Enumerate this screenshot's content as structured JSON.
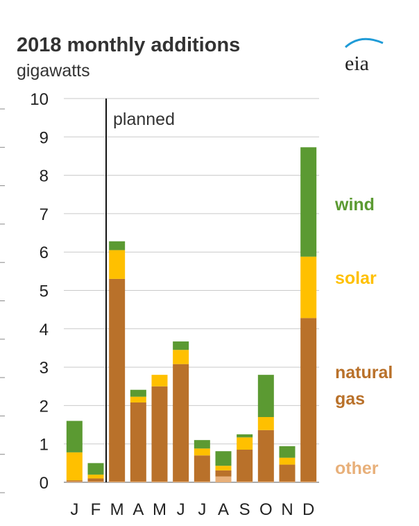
{
  "chart_data": {
    "type": "bar",
    "stacked": true,
    "title": "2018 monthly additions",
    "subtitle": "gigawatts",
    "categories": [
      "J",
      "F",
      "M",
      "A",
      "M",
      "J",
      "J",
      "A",
      "S",
      "O",
      "N",
      "D"
    ],
    "ylim": [
      0,
      10
    ],
    "yticks": [
      "0",
      "1",
      "2",
      "3",
      "4",
      "5",
      "6",
      "7",
      "8",
      "9",
      "10"
    ],
    "grid": true,
    "legend_placement": "right",
    "annotation": "planned",
    "series": [
      {
        "name": "other",
        "color": "#e8b07a",
        "values": [
          0.02,
          0.02,
          0.02,
          0.02,
          0.02,
          0.02,
          0.02,
          0.15,
          0.02,
          0.02,
          0.02,
          0.02
        ]
      },
      {
        "name": "natural gas",
        "color": "#b9712a",
        "values": [
          0.03,
          0.08,
          5.28,
          2.06,
          2.48,
          3.06,
          0.68,
          0.16,
          0.83,
          1.34,
          0.44,
          4.26
        ]
      },
      {
        "name": "solar",
        "color": "#ffc000",
        "values": [
          0.73,
          0.1,
          0.75,
          0.15,
          0.3,
          0.37,
          0.18,
          0.12,
          0.32,
          0.34,
          0.18,
          1.6
        ]
      },
      {
        "name": "wind",
        "color": "#5b9a32",
        "values": [
          0.82,
          0.3,
          0.23,
          0.18,
          0.0,
          0.22,
          0.22,
          0.38,
          0.08,
          1.1,
          0.3,
          2.85
        ]
      }
    ]
  },
  "logo": {
    "text": "eia"
  },
  "colors": {
    "grid": "#c9c9c9",
    "axis_text": "#222222",
    "wind": "#5b9a32",
    "solar": "#ffc000",
    "natural_gas": "#b9712a",
    "other": "#e8b07a"
  }
}
